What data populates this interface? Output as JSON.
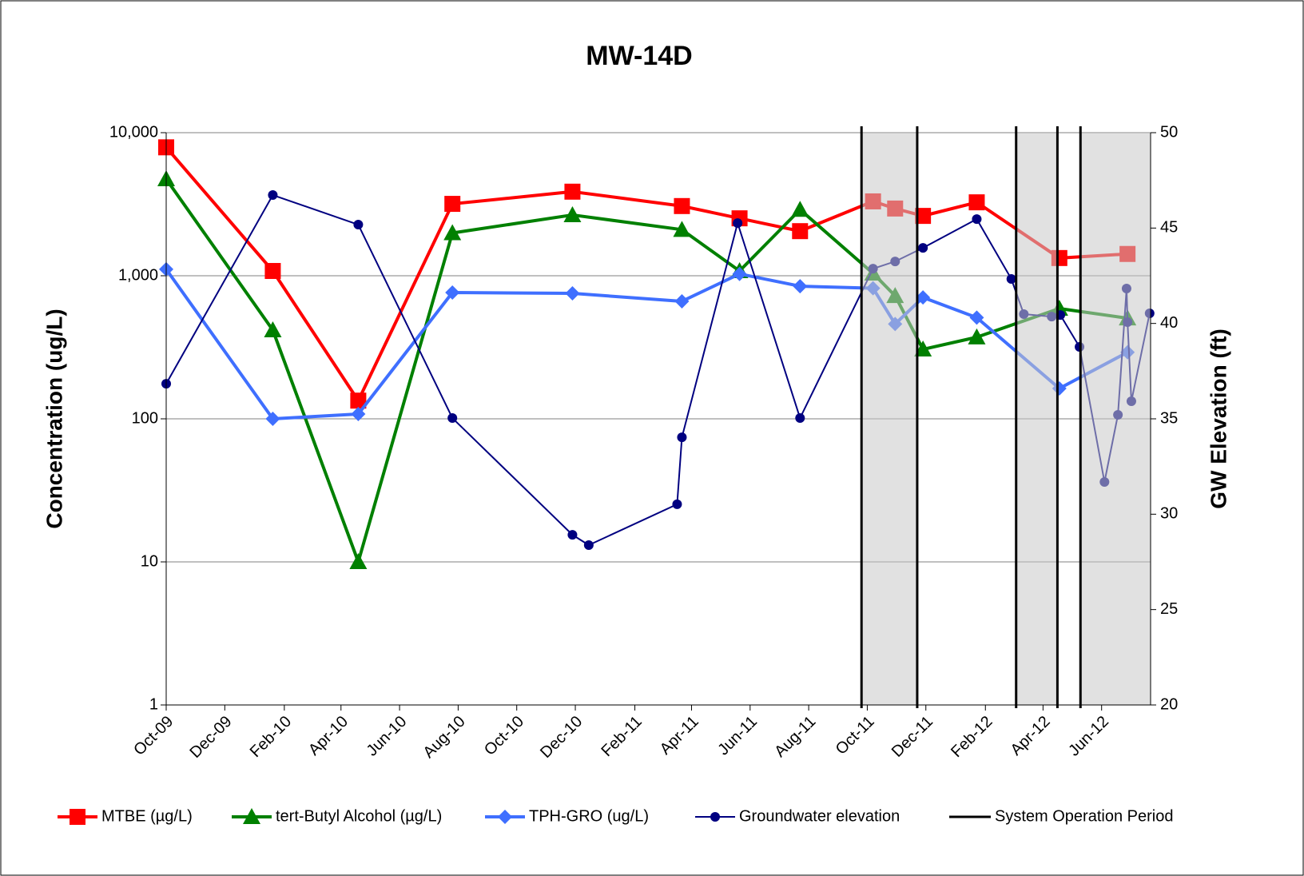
{
  "chart_data": {
    "type": "line",
    "title": "MW-14D",
    "y_label": "Concentration (ug/L)",
    "y2_label": "GW Elevation (ft)",
    "log_y": true,
    "grid": true,
    "legend": "bottom",
    "xlim": [
      "2009-10-01",
      "2012-07-22"
    ],
    "xticks": [
      {
        "value": "2009-10-01",
        "label": "Oct-09"
      },
      {
        "value": "2009-12-01",
        "label": "Dec-09"
      },
      {
        "value": "2010-02-01",
        "label": "Feb-10"
      },
      {
        "value": "2010-04-01",
        "label": "Apr-10"
      },
      {
        "value": "2010-06-01",
        "label": "Jun-10"
      },
      {
        "value": "2010-08-01",
        "label": "Aug-10"
      },
      {
        "value": "2010-10-01",
        "label": "Oct-10"
      },
      {
        "value": "2010-12-01",
        "label": "Dec-10"
      },
      {
        "value": "2011-02-01",
        "label": "Feb-11"
      },
      {
        "value": "2011-04-01",
        "label": "Apr-11"
      },
      {
        "value": "2011-06-01",
        "label": "Jun-11"
      },
      {
        "value": "2011-08-01",
        "label": "Aug-11"
      },
      {
        "value": "2011-10-01",
        "label": "Oct-11"
      },
      {
        "value": "2011-12-01",
        "label": "Dec-11"
      },
      {
        "value": "2012-02-01",
        "label": "Feb-12"
      },
      {
        "value": "2012-04-01",
        "label": "Apr-12"
      },
      {
        "value": "2012-06-01",
        "label": "Jun-12"
      }
    ],
    "ylim": [
      1,
      10000
    ],
    "yticks": [
      1,
      10,
      100,
      {
        "value": 1000,
        "label": "1,000"
      },
      {
        "value": 10000,
        "label": "10,000"
      }
    ],
    "y2lim": [
      20,
      50
    ],
    "y2ticks": [
      20,
      25,
      30,
      35,
      40,
      45,
      50
    ],
    "series": [
      {
        "name": "MTBE (µg/L)",
        "color": "#ff0000",
        "marker": "square",
        "x": [
          "2009-10-01",
          "2010-01-20",
          "2010-04-19",
          "2010-07-26",
          "2010-11-28",
          "2011-03-22",
          "2011-05-21",
          "2011-07-23",
          "2011-10-07",
          "2011-10-30",
          "2011-11-28",
          "2012-01-23",
          "2012-04-18",
          "2012-06-28"
        ],
        "values": [
          7900,
          1080,
          134,
          3180,
          3870,
          3070,
          2520,
          2050,
          3310,
          2950,
          2620,
          3260,
          1330,
          1420
        ]
      },
      {
        "name": "tert-Butyl Alcohol (µg/L)",
        "color": "#008000",
        "marker": "triangle",
        "x": [
          "2009-10-01",
          "2010-01-20",
          "2010-04-19",
          "2010-07-26",
          "2010-11-28",
          "2011-03-22",
          "2011-05-21",
          "2011-07-23",
          "2011-10-07",
          "2011-10-30",
          "2011-11-28",
          "2012-01-23",
          "2012-04-18",
          "2012-06-28"
        ],
        "values": [
          4740,
          417,
          10,
          1990,
          2660,
          2100,
          1080,
          2900,
          1040,
          724,
          306,
          372,
          590,
          505
        ]
      },
      {
        "name": "TPH-GRO (ug/L)",
        "color": "#3f6fff",
        "marker": "diamond",
        "x": [
          "2009-10-01",
          "2010-01-20",
          "2010-04-19",
          "2010-07-26",
          "2010-11-28",
          "2011-03-22",
          "2011-05-21",
          "2011-07-23",
          "2011-10-07",
          "2011-10-30",
          "2011-11-28",
          "2012-01-23",
          "2012-04-18",
          "2012-06-28"
        ],
        "values": [
          1110,
          100,
          108,
          763,
          753,
          663,
          1030,
          845,
          818,
          460,
          705,
          510,
          163,
          292
        ]
      },
      {
        "name": "Groundwater elevation",
        "color": "#000080",
        "marker": "circle",
        "axis": "y2",
        "x": [
          "2009-10-01",
          "2010-01-20",
          "2010-04-19",
          "2010-07-26",
          "2010-11-28",
          "2010-12-15",
          "2011-03-17",
          "2011-03-22",
          "2011-05-19",
          "2011-07-23",
          "2011-10-07",
          "2011-10-30",
          "2011-11-28",
          "2012-01-23",
          "2012-02-28",
          "2012-03-12",
          "2012-04-10",
          "2012-04-19",
          "2012-05-09",
          "2012-06-04",
          "2012-06-18",
          "2012-06-27",
          "2012-06-28",
          "2012-07-02",
          "2012-07-21"
        ],
        "values": [
          36.84,
          46.73,
          45.18,
          35.04,
          28.92,
          28.38,
          30.52,
          34.03,
          45.26,
          35.04,
          42.87,
          43.25,
          43.96,
          45.47,
          42.33,
          40.49,
          40.36,
          40.44,
          38.77,
          31.69,
          35.21,
          41.83,
          40.07,
          35.92,
          40.53
        ]
      }
    ],
    "operation_periods": {
      "name": "System Operation Period",
      "color": "#000000",
      "periods": [
        [
          "2011-09-25",
          "2011-11-22"
        ],
        [
          "2012-03-04",
          "2012-04-16"
        ],
        [
          "2012-05-10",
          "2012-07-22"
        ]
      ]
    }
  }
}
